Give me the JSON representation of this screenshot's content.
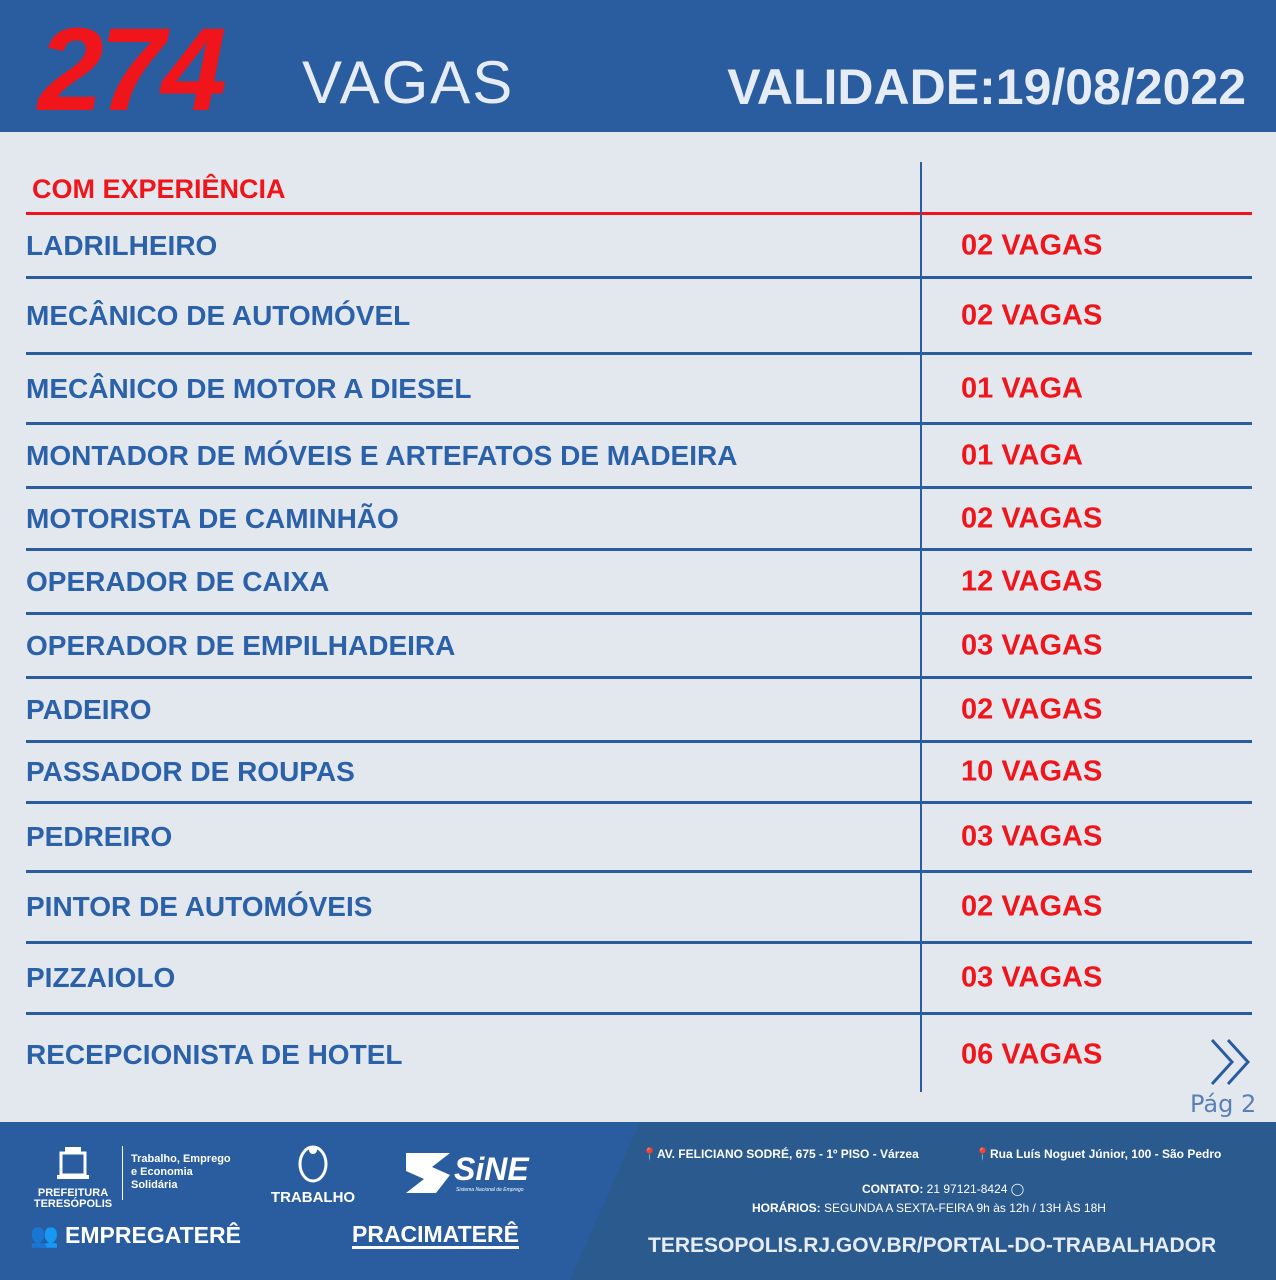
{
  "header": {
    "count": "274",
    "count_label": "VAGAS",
    "validity": "VALIDADE:19/08/2022"
  },
  "section_title": "COM EXPERIÊNCIA",
  "jobs": [
    {
      "title": "LADRILHEIRO",
      "openings": "02 VAGAS"
    },
    {
      "title": "MECÂNICO DE AUTOMÓVEL",
      "openings": "02 VAGAS"
    },
    {
      "title": "MECÂNICO DE MOTOR A DIESEL",
      "openings": "01 VAGA"
    },
    {
      "title": "MONTADOR DE MÓVEIS E ARTEFATOS DE MADEIRA",
      "openings": "01 VAGA"
    },
    {
      "title": "MOTORISTA DE CAMINHÃO",
      "openings": "02 VAGAS"
    },
    {
      "title": "OPERADOR DE CAIXA",
      "openings": "12 VAGAS"
    },
    {
      "title": "OPERADOR DE EMPILHADEIRA",
      "openings": "03 VAGAS"
    },
    {
      "title": "PADEIRO",
      "openings": "02 VAGAS"
    },
    {
      "title": "PASSADOR DE ROUPAS",
      "openings": "10 VAGAS"
    },
    {
      "title": "PEDREIRO",
      "openings": "03 VAGAS"
    },
    {
      "title": "PINTOR DE AUTOMÓVEIS",
      "openings": "02 VAGAS"
    },
    {
      "title": "PIZZAIOLO",
      "openings": "03 VAGAS"
    },
    {
      "title": "RECEPCIONISTA DE HOTEL",
      "openings": "06 VAGAS"
    }
  ],
  "pagination": {
    "label": "Pág 2",
    "next_icon": "double-chevron-right-icon"
  },
  "footer": {
    "logo_prefeitura": "PREFEITURA TERESÓPOLIS",
    "secretaria": [
      "Trabalho, Emprego",
      "e Economia",
      "Solidária"
    ],
    "logo_trabalho": "TRABALHO",
    "logo_sine": "SiNE",
    "logo_sine_sub": "Sistema Nacional de Emprego",
    "logo_empregatere": "EMPREGATERÊ",
    "logo_pracimatere": "PRACIMATERÊ",
    "address1": "AV. FELICIANO SODRÉ, 675 - 1º PISO - Várzea",
    "address2": "Rua Luís Noguet Júnior, 100 - São Pedro",
    "contact_label": "CONTATO:",
    "contact": "21 97121-8424",
    "hours_label": "HORÁRIOS:",
    "hours": "SEGUNDA A SEXTA-FEIRA  9h às 12h / 13H ÀS 18H",
    "url": "TERESOPOLIS.RJ.GOV.BR/PORTAL-DO-TRABALHADOR"
  },
  "colors": {
    "blue": "#2a5d9f",
    "red": "#f0141b",
    "background": "#e3e8ef"
  }
}
